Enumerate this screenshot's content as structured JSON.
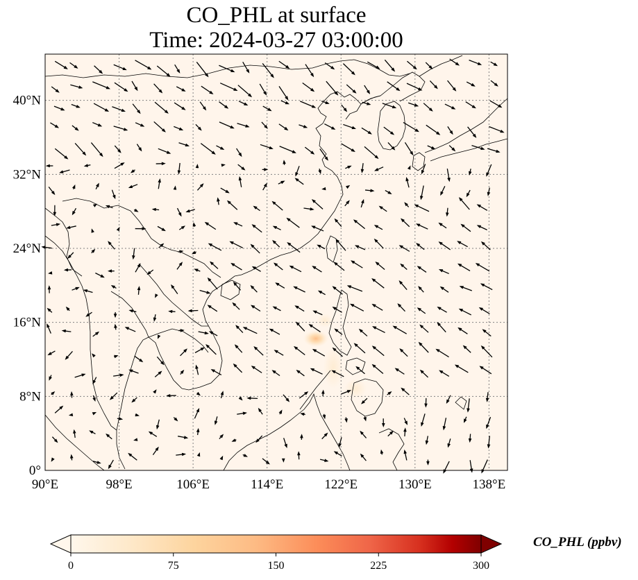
{
  "figure": {
    "title_line1": "CO_PHL at surface",
    "title_line2": "Time: 2024-03-27 03:00:00"
  },
  "map": {
    "extent_lon": [
      90,
      140
    ],
    "extent_lat": [
      0,
      45
    ],
    "lon_ticks": [
      {
        "value": 90,
        "label": "90°E"
      },
      {
        "value": 98,
        "label": "98°E"
      },
      {
        "value": 106,
        "label": "106°E"
      },
      {
        "value": 114,
        "label": "114°E"
      },
      {
        "value": 122,
        "label": "122°E"
      },
      {
        "value": 130,
        "label": "130°E"
      },
      {
        "value": 138,
        "label": "138°E"
      }
    ],
    "lat_ticks": [
      {
        "value": 0,
        "label": "0°"
      },
      {
        "value": 8,
        "label": "8°N"
      },
      {
        "value": 16,
        "label": "16°N"
      },
      {
        "value": 24,
        "label": "24°N"
      },
      {
        "value": 32,
        "label": "32°N"
      },
      {
        "value": 40,
        "label": "40°N"
      }
    ],
    "field_color_bg": "#fff5eb",
    "coastline_color": "#000000",
    "gridline_color": "#808080",
    "arrow_color": "#000000"
  },
  "colorbar": {
    "label": "CO_PHL (ppbv)",
    "min": 0,
    "max": 300,
    "ticks": [
      0,
      75,
      150,
      225,
      300
    ],
    "colormap": "OrRd",
    "extend": "both"
  }
}
